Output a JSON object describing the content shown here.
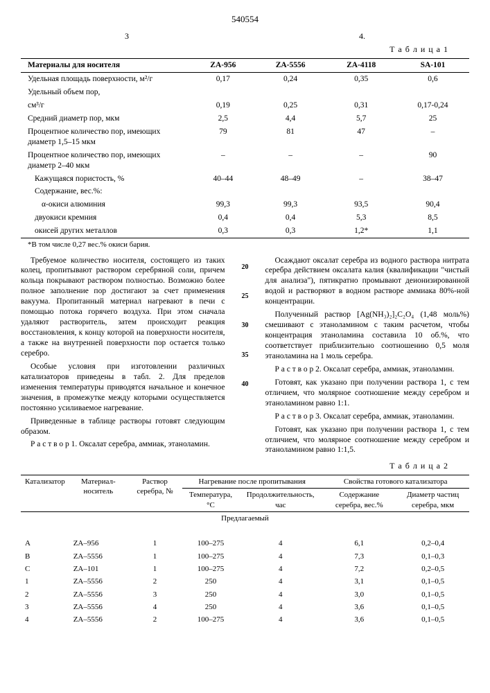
{
  "docNumber": "540554",
  "pageLeft": "3",
  "pageRight": "4.",
  "table1": {
    "caption": "Т а б л и ц а 1",
    "headers": [
      "Материалы для носителя",
      "ZA-956",
      "ZA-5556",
      "ZA-4118",
      "SA-101"
    ],
    "rows": [
      {
        "label": "Удельная площадь поверхности, м²/г",
        "v": [
          "0,17",
          "0,24",
          "0,35",
          "0,6"
        ]
      },
      {
        "label": "Удельный объем пор,",
        "v": [
          "",
          "",
          "",
          ""
        ]
      },
      {
        "label": "см³/г",
        "indent": 0,
        "v": [
          "0,19",
          "0,25",
          "0,31",
          "0,17-0,24"
        ]
      },
      {
        "label": "Средний диаметр пор, мкм",
        "v": [
          "2,5",
          "4,4",
          "5,7",
          "25"
        ]
      },
      {
        "label": "Процентное количество пор, имеющих диаметр 1,5–15 мкм",
        "v": [
          "79",
          "81",
          "47",
          "–"
        ]
      },
      {
        "label": "Процентное количество пор, имеющих диаметр 2–40 мкм",
        "v": [
          "–",
          "–",
          "–",
          "90"
        ]
      },
      {
        "label": "Кажущаяся пористость, %",
        "indent": 1,
        "v": [
          "40–44",
          "48–49",
          "–",
          "38–47"
        ]
      },
      {
        "label": "Содержание, вес.%:",
        "indent": 1,
        "v": [
          "",
          "",
          "",
          ""
        ]
      },
      {
        "label": "α-окиси алюминия",
        "indent": 2,
        "v": [
          "99,3",
          "99,3",
          "93,5",
          "90,4"
        ]
      },
      {
        "label": "двуокиси кремния",
        "indent": 1,
        "v": [
          "0,4",
          "0,4",
          "5,3",
          "8,5"
        ]
      },
      {
        "label": "окисей других металлов",
        "indent": 1,
        "v": [
          "0,3",
          "0,3",
          "1,2*",
          "1,1"
        ]
      }
    ],
    "footnote": "*В том числе 0,27 вес.% окиси бария."
  },
  "lineNums": [
    "20",
    "25",
    "30",
    "35",
    "40"
  ],
  "leftCol": [
    "Требуемое количество носителя, состоящего из таких колец, пропитывают раствором серебряной соли, причем кольца покрывают раствором полностью. Возможно более полное заполнение пор достигают за счет применения вакуума. Пропитанный материал нагревают в печи с помощью потока горячего воздуха. При этом сначала удаляют растворитель, затем происходит реакция восстановления, к концу которой на поверхности носителя, а также на внутренней поверхности пор остается только серебро.",
    "Особые условия при изготовлении различных катализаторов приведены в табл. 2. Для пределов изменения температуры приводятся начальное и конечное значения, в промежутке между которыми осуществляется постоянно усиливаемое нагревание.",
    "Приведенные в таблице растворы готовят следующим образом.",
    "Р а с т в о р 1. Оксалат серебра, аммиак, этаноламин."
  ],
  "rightCol": [
    "Осаждают оксалат серебра из водного раствора нитрата серебра действием оксалата калия (квалификации \"чистый для анализа\"), пятикратно промывают деионизированной водой и растворяют в водном растворе аммиака 80%-ной концентрации.",
    "Полученный раствор [Ag(NH₃)₂]₂C₂O₄ (1,48 моль%) смешивают с этаноламином с таким расчетом, чтобы концентрация этаноламина составила 10 об.%, что соответствует приблизительно соотношению 0,5 моля этаноламина на 1 моль серебра.",
    "Р а с т в о р 2. Оксалат серебра, аммиак, этаноламин.",
    "Готовят, как указано при получении раствора 1, с тем отличием, что молярное соотношение между серебром и этаноламином равно 1:1.",
    "Р а с т в о р 3. Оксалат серебра, аммиак, этаноламин.",
    "Готовят, как указано при получении раствора 1, с тем отличием, что молярное соотношение между серебром и этаноламином равно 1:1,5."
  ],
  "table2": {
    "caption": "Т а б л и ц а 2",
    "headers1": [
      "Катализатор",
      "Материал-носитель",
      "Раствор серебра, №",
      "Нагревание после пропитывания",
      "Свойства готового катализатора"
    ],
    "headers2": [
      "Температура, °С",
      "Продолжительность, час",
      "Содержание серебра, вес.%",
      "Диаметр частиц серебра, мкм"
    ],
    "group": "Предлагаемый",
    "rows": [
      [
        "A",
        "ZA–956",
        "1",
        "100–275",
        "4",
        "6,1",
        "0,2–0,4"
      ],
      [
        "B",
        "ZA–5556",
        "1",
        "100–275",
        "4",
        "7,3",
        "0,1–0,3"
      ],
      [
        "C",
        "ZA–101",
        "1",
        "100–275",
        "4",
        "7,2",
        "0,2–0,5"
      ],
      [
        "1",
        "ZA–5556",
        "2",
        "250",
        "4",
        "3,1",
        "0,1–0,5"
      ],
      [
        "2",
        "ZA–5556",
        "3",
        "250",
        "4",
        "3,0",
        "0,1–0,5"
      ],
      [
        "3",
        "ZA–5556",
        "4",
        "250",
        "4",
        "3,6",
        "0,1–0,5"
      ],
      [
        "4",
        "ZA–5556",
        "2",
        "100–275",
        "4",
        "3,6",
        "0,1–0,5"
      ]
    ]
  }
}
